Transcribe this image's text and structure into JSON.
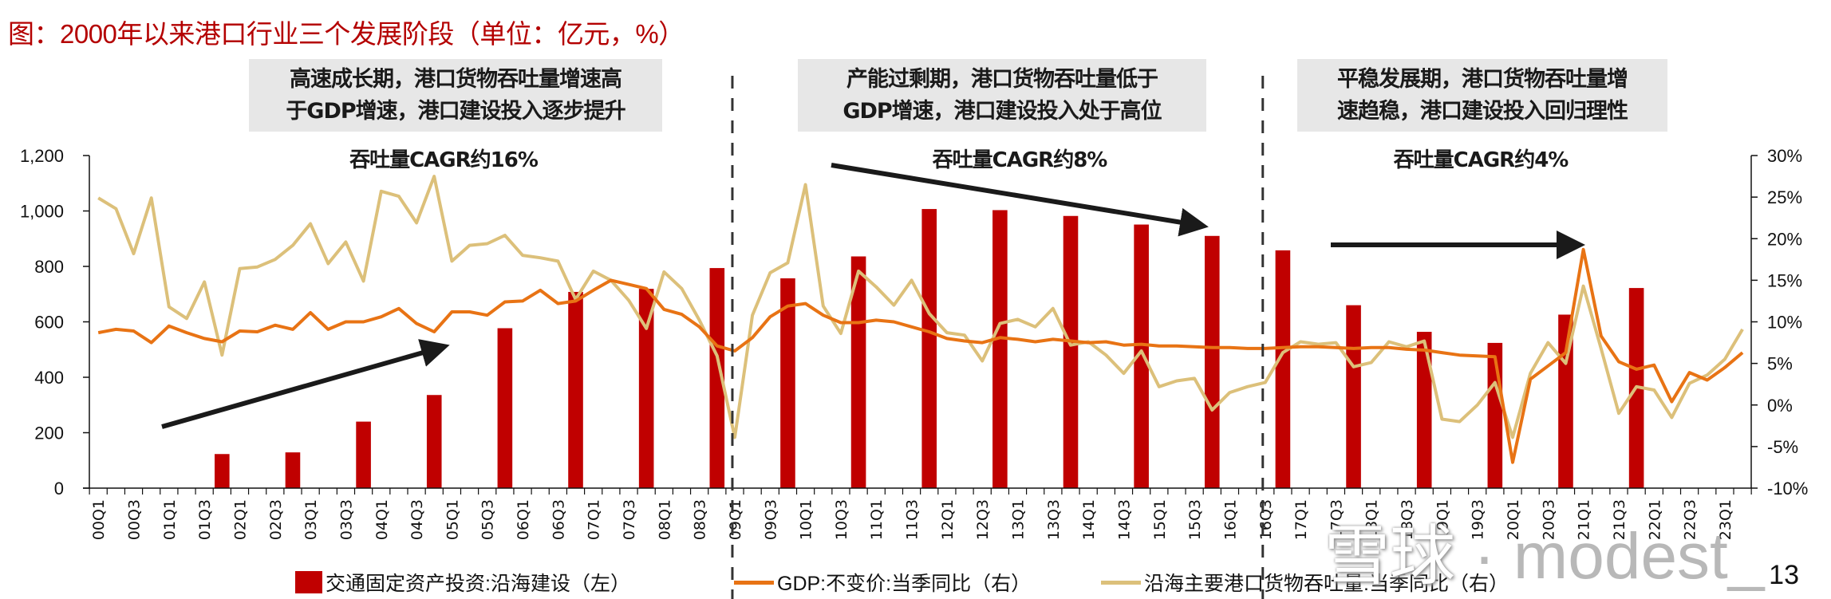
{
  "title": "图：2000年以来港口行业三个发展阶段（单位：亿元，%）",
  "phases": [
    {
      "label_lines": [
        "高速成长期，港口货物吞吐量增速高",
        "于GDP增速，港口建设投入逐步提升"
      ],
      "cagr": "吞吐量CAGR约16%",
      "trend": "up"
    },
    {
      "label_lines": [
        "产能过剩期，港口货物吞吐量低于",
        "GDP增速，港口建设投入处于高位"
      ],
      "cagr": "吞吐量CAGR约8%",
      "trend": "down"
    },
    {
      "label_lines": [
        "平稳发展期，港口货物吞吐量增",
        "速趋稳，港口建设投入回归理性"
      ],
      "cagr": "吞吐量CAGR约4%",
      "trend": "flat"
    }
  ],
  "legend": [
    {
      "label": "交通固定资产投资:沿海建设（左）",
      "type": "bar",
      "color": "#c00000"
    },
    {
      "label": "GDP:不变价:当季同比（右）",
      "type": "line",
      "color": "#e87314"
    },
    {
      "label": "沿海主要港口货物吞吐量:当季同比（右）",
      "type": "line",
      "color": "#dcc07a"
    }
  ],
  "page_number": "13",
  "watermark": {
    "logo": "雪球",
    "separator": "·",
    "user": "modest_"
  },
  "chart_data": {
    "type": "bar+line",
    "title": "图：2000年以来港口行业三个发展阶段（单位：亿元，%）",
    "x": [
      "00Q1",
      "00Q2",
      "00Q3",
      "00Q4",
      "01Q1",
      "01Q2",
      "01Q3",
      "01Q4",
      "02Q1",
      "02Q2",
      "02Q3",
      "02Q4",
      "03Q1",
      "03Q2",
      "03Q3",
      "03Q4",
      "04Q1",
      "04Q2",
      "04Q3",
      "04Q4",
      "05Q1",
      "05Q2",
      "05Q3",
      "05Q4",
      "06Q1",
      "06Q2",
      "06Q3",
      "06Q4",
      "07Q1",
      "07Q2",
      "07Q3",
      "07Q4",
      "08Q1",
      "08Q2",
      "08Q3",
      "08Q4",
      "09Q1",
      "09Q2",
      "09Q3",
      "09Q4",
      "10Q1",
      "10Q2",
      "10Q3",
      "10Q4",
      "11Q1",
      "11Q2",
      "11Q3",
      "11Q4",
      "12Q1",
      "12Q2",
      "12Q3",
      "12Q4",
      "13Q1",
      "13Q2",
      "13Q3",
      "13Q4",
      "14Q1",
      "14Q2",
      "14Q3",
      "14Q4",
      "15Q1",
      "15Q2",
      "15Q3",
      "15Q4",
      "16Q1",
      "16Q2",
      "16Q3",
      "16Q4",
      "17Q1",
      "17Q2",
      "17Q3",
      "17Q4",
      "18Q1",
      "18Q2",
      "18Q3",
      "18Q4",
      "19Q1",
      "19Q2",
      "19Q3",
      "19Q4",
      "20Q1",
      "20Q2",
      "20Q3",
      "20Q4",
      "21Q1",
      "21Q2",
      "21Q3",
      "21Q4",
      "22Q1",
      "22Q2",
      "22Q3",
      "22Q4",
      "23Q1",
      "23Q2"
    ],
    "x_tick_labels": [
      "00Q1",
      "00Q3",
      "01Q1",
      "01Q3",
      "02Q1",
      "02Q3",
      "03Q1",
      "03Q3",
      "04Q1",
      "04Q3",
      "05Q1",
      "05Q3",
      "06Q1",
      "06Q3",
      "07Q1",
      "07Q3",
      "08Q1",
      "08Q3",
      "09Q1",
      "09Q3",
      "10Q1",
      "10Q3",
      "11Q1",
      "11Q3",
      "12Q1",
      "12Q3",
      "13Q1",
      "13Q3",
      "14Q1",
      "14Q3",
      "15Q1",
      "15Q3",
      "16Q1",
      "16Q3",
      "17Q1",
      "17Q3",
      "18Q1",
      "18Q3",
      "19Q1",
      "19Q3",
      "20Q1",
      "20Q3",
      "21Q1",
      "21Q3",
      "22Q1",
      "22Q3",
      "23Q1"
    ],
    "y_left": {
      "min": 0,
      "max": 1200,
      "step": 200,
      "ticks": [
        "0",
        "200",
        "400",
        "600",
        "800",
        "1,000",
        "1,200"
      ]
    },
    "y_right": {
      "min": -10,
      "max": 30,
      "step": 5,
      "ticks": [
        "-10%",
        "-5%",
        "0%",
        "5%",
        "10%",
        "15%",
        "20%",
        "25%",
        "30%"
      ]
    },
    "phase_dividers": [
      "09Q1",
      "16Q3"
    ],
    "series": [
      {
        "name": "交通固定资产投资:沿海建设（左）",
        "type": "bar",
        "axis": "left",
        "color": "#c00000",
        "points": [
          {
            "x": "01Q4",
            "y": 123
          },
          {
            "x": "02Q4",
            "y": 129
          },
          {
            "x": "03Q4",
            "y": 240
          },
          {
            "x": "04Q4",
            "y": 336
          },
          {
            "x": "05Q4",
            "y": 577
          },
          {
            "x": "06Q4",
            "y": 708
          },
          {
            "x": "07Q4",
            "y": 719
          },
          {
            "x": "08Q4",
            "y": 794
          },
          {
            "x": "09Q4",
            "y": 757
          },
          {
            "x": "10Q4",
            "y": 836
          },
          {
            "x": "11Q4",
            "y": 1007
          },
          {
            "x": "12Q4",
            "y": 1003
          },
          {
            "x": "13Q4",
            "y": 982
          },
          {
            "x": "14Q4",
            "y": 951
          },
          {
            "x": "15Q4",
            "y": 910
          },
          {
            "x": "16Q4",
            "y": 858
          },
          {
            "x": "17Q4",
            "y": 660
          },
          {
            "x": "18Q4",
            "y": 564
          },
          {
            "x": "19Q4",
            "y": 524
          },
          {
            "x": "20Q4",
            "y": 626
          },
          {
            "x": "21Q4",
            "y": 722
          }
        ]
      },
      {
        "name": "GDP:不变价:当季同比（右）",
        "type": "line",
        "axis": "right",
        "color": "#e87314",
        "values": [
          8.7,
          9.1,
          8.9,
          7.5,
          9.5,
          8.7,
          8.0,
          7.6,
          8.9,
          8.8,
          9.6,
          9.1,
          11.1,
          9.1,
          10.0,
          10.0,
          10.6,
          11.6,
          9.8,
          8.8,
          11.2,
          11.2,
          10.8,
          12.4,
          12.5,
          13.8,
          12.2,
          12.5,
          13.8,
          15.0,
          14.5,
          14.0,
          11.5,
          10.9,
          9.4,
          7.1,
          6.5,
          8.1,
          10.6,
          11.9,
          12.2,
          10.8,
          9.9,
          9.9,
          10.2,
          10.0,
          9.4,
          8.8,
          8.0,
          7.7,
          7.5,
          8.1,
          7.9,
          7.6,
          7.9,
          7.7,
          7.5,
          7.6,
          7.2,
          7.3,
          7.1,
          7.1,
          7.0,
          6.9,
          6.9,
          6.8,
          6.8,
          6.9,
          7.0,
          7.0,
          6.9,
          6.8,
          6.9,
          6.9,
          6.7,
          6.6,
          6.3,
          6.0,
          5.9,
          5.8,
          -6.9,
          3.1,
          4.7,
          6.3,
          18.7,
          8.3,
          5.2,
          4.3,
          4.8,
          0.4,
          3.9,
          3.0,
          4.5,
          6.3
        ]
      },
      {
        "name": "沿海主要港口货物吞吐量:当季同比（右）",
        "type": "line",
        "axis": "right",
        "color": "#dcc07a",
        "values": [
          24.9,
          23.6,
          18.2,
          24.9,
          11.8,
          10.4,
          14.8,
          6.0,
          16.4,
          16.6,
          17.5,
          19.2,
          21.8,
          17.0,
          19.6,
          14.9,
          25.7,
          25.1,
          21.9,
          27.5,
          17.3,
          19.2,
          19.4,
          20.4,
          18.0,
          17.7,
          17.3,
          12.7,
          16.1,
          15.0,
          12.6,
          9.2,
          16.0,
          14.0,
          10.2,
          5.9,
          -3.9,
          10.8,
          15.9,
          17.1,
          26.5,
          11.9,
          8.6,
          16.1,
          14.2,
          12.0,
          15.0,
          11.0,
          8.7,
          8.4,
          5.3,
          9.8,
          10.3,
          9.4,
          11.6,
          7.2,
          7.6,
          6.0,
          3.8,
          6.5,
          2.2,
          2.9,
          3.2,
          -0.6,
          1.5,
          2.2,
          2.7,
          6.3,
          7.6,
          7.3,
          7.5,
          4.6,
          5.1,
          7.6,
          7.0,
          7.7,
          -1.7,
          -2.0,
          0.0,
          2.7,
          -3.9,
          3.8,
          7.5,
          5.0,
          14.3,
          6.8,
          -1.0,
          2.2,
          1.8,
          -1.5,
          2.6,
          3.6,
          5.5,
          9.1
        ]
      }
    ],
    "annotations": [
      {
        "type": "arrow",
        "phase": 1,
        "direction": "up"
      },
      {
        "type": "arrow",
        "phase": 2,
        "direction": "down"
      },
      {
        "type": "arrow",
        "phase": 3,
        "direction": "flat"
      }
    ],
    "grid": false,
    "legend_position": "bottom"
  }
}
